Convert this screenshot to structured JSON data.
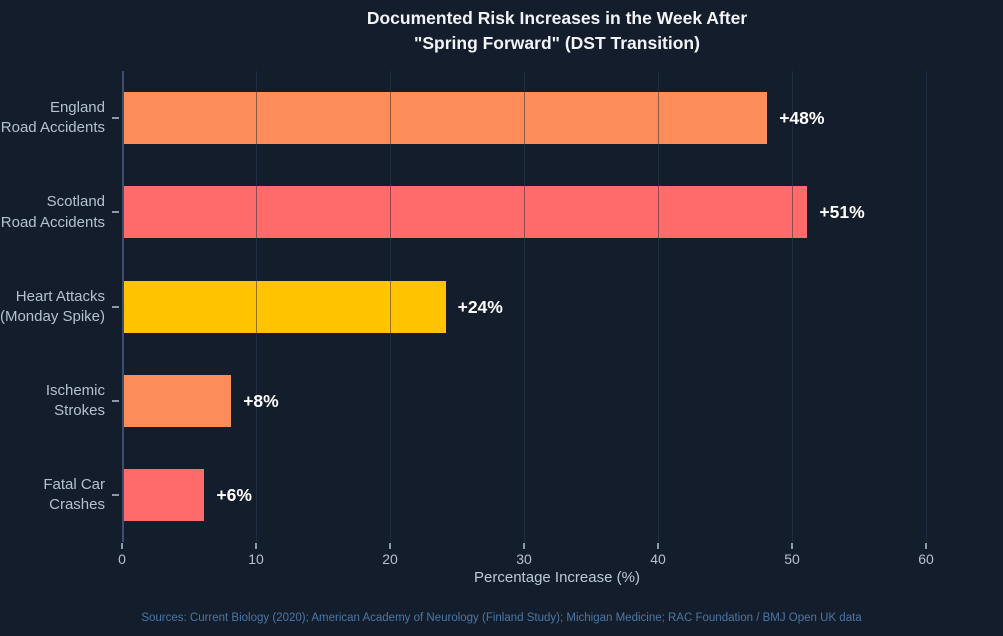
{
  "chart_data": {
    "type": "bar",
    "orientation": "horizontal",
    "title": "Documented Risk Increases in the Week After\n\"Spring Forward\" (DST Transition)",
    "categories": [
      "England\nRoad Accidents",
      "Scotland\nRoad Accidents",
      "Heart Attacks\n(Monday Spike)",
      "Ischemic\nStrokes",
      "Fatal Car\nCrashes"
    ],
    "values": [
      48,
      51,
      24,
      8,
      6
    ],
    "value_labels": [
      "+48%",
      "+51%",
      "+24%",
      "+8%",
      "+6%"
    ],
    "bar_colors": [
      "#FC8C59",
      "#FF6B6B",
      "#FFC300",
      "#FC8C59",
      "#FF6B6B"
    ],
    "xlabel": "Percentage Increase (%)",
    "xticks": [
      0,
      10,
      20,
      30,
      40,
      50,
      60
    ],
    "xlim": [
      0,
      60
    ],
    "grid": true,
    "legend": false
  },
  "footer": "Sources: Current Biology (2020); American Academy of Neurology (Finland Study); Michigan Medicine; RAC Foundation / BMJ Open UK data",
  "colors": {
    "background": "#141D2B",
    "title_text": "#F2F4F7",
    "bar_value_text": "#FFFFFF",
    "axis_text": "#B6C1CF",
    "gridline": "#2D3C58",
    "axis_spine": "#3D4D6B",
    "tick_mark": "#8B99AD",
    "footer_text": "#4B77A6"
  }
}
